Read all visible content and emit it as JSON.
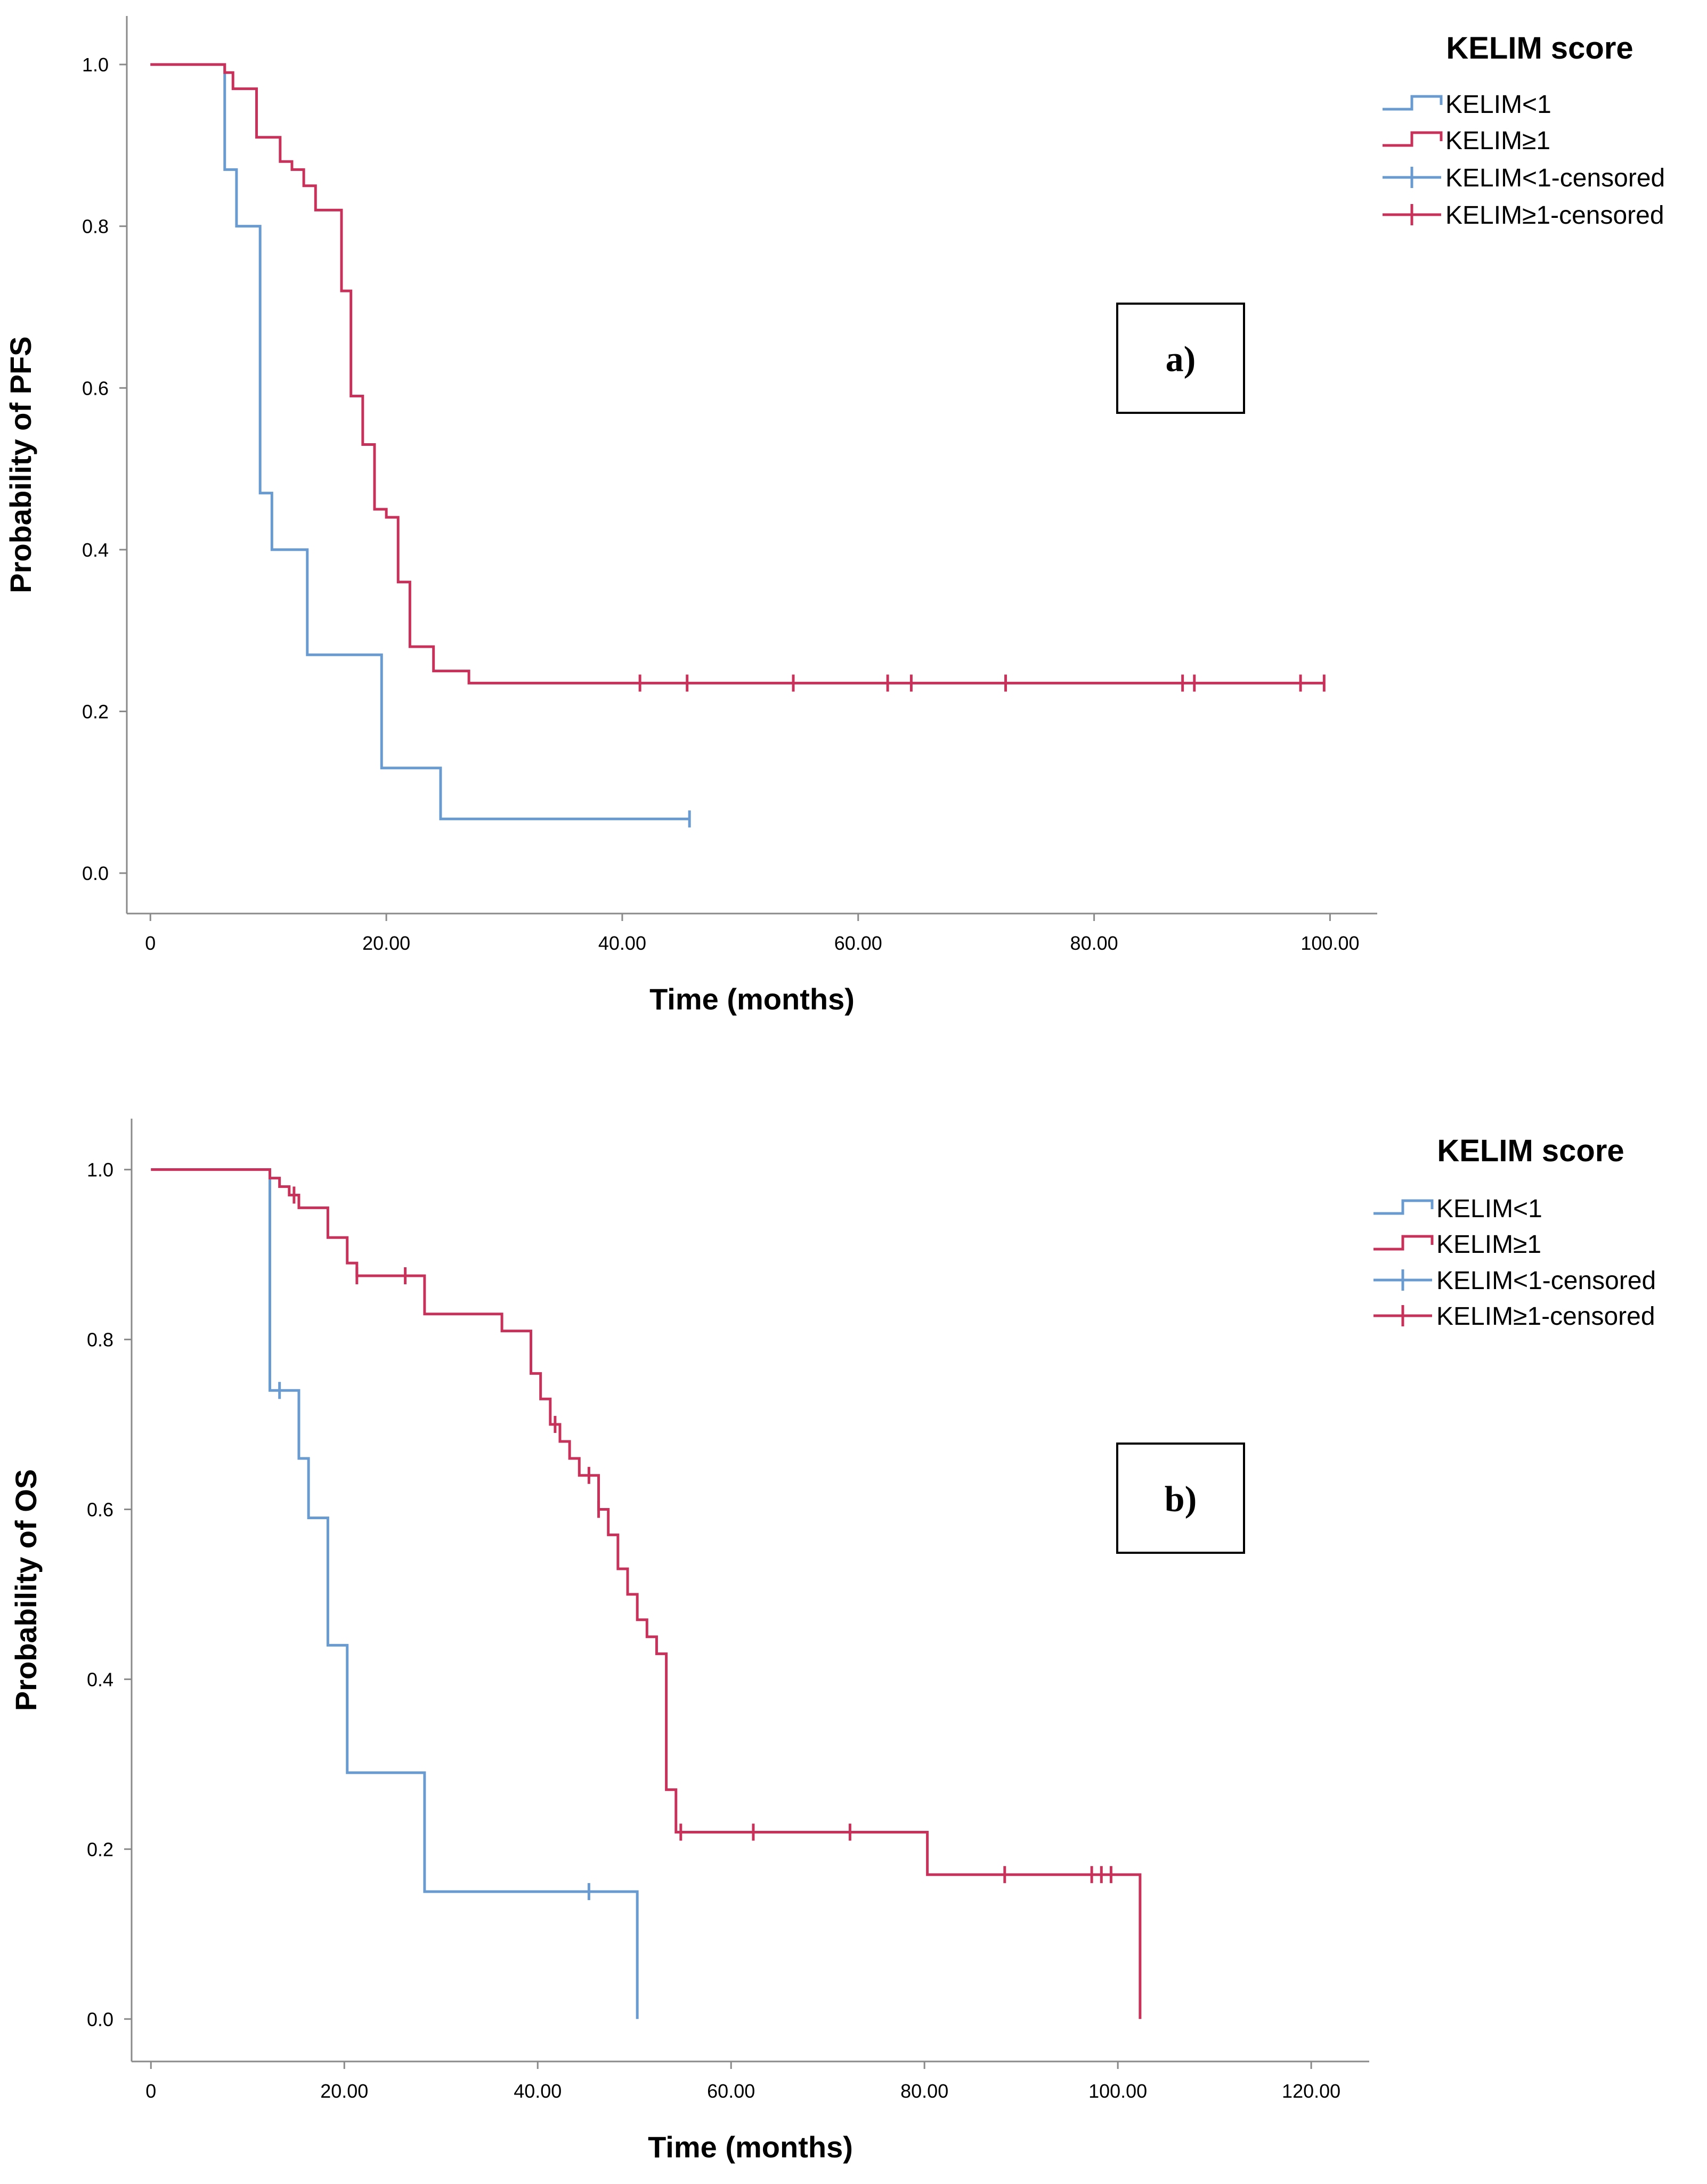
{
  "colors": {
    "low": "#6a9bd0",
    "high": "#c8325a"
  },
  "chart_data": [
    {
      "type": "line",
      "subtype": "kaplan-meier",
      "panel_label": "a)",
      "xlabel": "Time (months)",
      "ylabel": "Probability of PFS",
      "xlim": [
        -2,
        104
      ],
      "ylim": [
        -0.05,
        1.06
      ],
      "xticks": [
        {
          "value": 0,
          "label": "0"
        },
        {
          "value": 20,
          "label": "20.00"
        },
        {
          "value": 40,
          "label": "40.00"
        },
        {
          "value": 60,
          "label": "60.00"
        },
        {
          "value": 80,
          "label": "80.00"
        },
        {
          "value": 100,
          "label": "100.00"
        }
      ],
      "yticks": [
        {
          "value": 0,
          "label": "0.0"
        },
        {
          "value": 0.2,
          "label": "0.2"
        },
        {
          "value": 0.4,
          "label": "0.4"
        },
        {
          "value": 0.6,
          "label": "0.6"
        },
        {
          "value": 0.8,
          "label": "0.8"
        },
        {
          "value": 1.0,
          "label": "1.0"
        }
      ],
      "grid": false,
      "legend": {
        "title": "KELIM score",
        "placement": "top-right",
        "entries": [
          {
            "label": "KELIM<1",
            "kind": "step",
            "series": "low"
          },
          {
            "label": "KELIM≥1",
            "kind": "step",
            "series": "high"
          },
          {
            "label": "KELIM<1-censored",
            "kind": "censor",
            "series": "low"
          },
          {
            "label": "KELIM≥1-censored",
            "kind": "censor",
            "series": "high"
          }
        ]
      },
      "series": [
        {
          "key": "low",
          "name": "KELIM<1",
          "steps": [
            [
              0,
              1.0
            ],
            [
              6.3,
              0.87
            ],
            [
              7.3,
              0.8
            ],
            [
              9.3,
              0.47
            ],
            [
              10.3,
              0.4
            ],
            [
              13.3,
              0.27
            ],
            [
              19.6,
              0.13
            ],
            [
              24.6,
              0.067
            ]
          ],
          "end": 45.7,
          "censored": [
            45.7
          ]
        },
        {
          "key": "high",
          "name": "KELIM≥1",
          "steps": [
            [
              0,
              1.0
            ],
            [
              6.3,
              0.99
            ],
            [
              7.0,
              0.97
            ],
            [
              9.0,
              0.91
            ],
            [
              11.0,
              0.88
            ],
            [
              12.0,
              0.87
            ],
            [
              13.0,
              0.85
            ],
            [
              14.0,
              0.82
            ],
            [
              16.2,
              0.72
            ],
            [
              17.0,
              0.59
            ],
            [
              18.0,
              0.53
            ],
            [
              19.0,
              0.45
            ],
            [
              20.0,
              0.44
            ],
            [
              21.0,
              0.36
            ],
            [
              22.0,
              0.28
            ],
            [
              24.0,
              0.25
            ],
            [
              27.0,
              0.235
            ]
          ],
          "end": 99.6,
          "censored": [
            41.5,
            45.5,
            54.5,
            62.5,
            64.5,
            72.5,
            87.5,
            88.5,
            97.5,
            99.5
          ]
        }
      ]
    },
    {
      "type": "line",
      "subtype": "kaplan-meier",
      "panel_label": "b)",
      "xlabel": "Time (months)",
      "ylabel": "Probability of OS",
      "xlim": [
        -2,
        126
      ],
      "ylim": [
        -0.05,
        1.06
      ],
      "xticks": [
        {
          "value": 0,
          "label": "0"
        },
        {
          "value": 20,
          "label": "20.00"
        },
        {
          "value": 40,
          "label": "40.00"
        },
        {
          "value": 60,
          "label": "60.00"
        },
        {
          "value": 80,
          "label": "80.00"
        },
        {
          "value": 100,
          "label": "100.00"
        },
        {
          "value": 120,
          "label": "120.00"
        }
      ],
      "yticks": [
        {
          "value": 0,
          "label": "0.0"
        },
        {
          "value": 0.2,
          "label": "0.2"
        },
        {
          "value": 0.4,
          "label": "0.4"
        },
        {
          "value": 0.6,
          "label": "0.6"
        },
        {
          "value": 0.8,
          "label": "0.8"
        },
        {
          "value": 1.0,
          "label": "1.0"
        }
      ],
      "grid": false,
      "legend": {
        "title": "KELIM score",
        "placement": "top-right",
        "entries": [
          {
            "label": "KELIM<1",
            "kind": "step",
            "series": "low"
          },
          {
            "label": "KELIM≥1",
            "kind": "step",
            "series": "high"
          },
          {
            "label": "KELIM<1-censored",
            "kind": "censor",
            "series": "low"
          },
          {
            "label": "KELIM≥1-censored",
            "kind": "censor",
            "series": "high"
          }
        ]
      },
      "series": [
        {
          "key": "low",
          "name": "KELIM<1",
          "steps": [
            [
              0,
              1.0
            ],
            [
              12.3,
              0.74
            ],
            [
              15.3,
              0.66
            ],
            [
              16.3,
              0.59
            ],
            [
              18.3,
              0.44
            ],
            [
              20.3,
              0.29
            ],
            [
              28.3,
              0.15
            ],
            [
              50.3,
              0.0
            ]
          ],
          "end": 50.3,
          "censored": [
            13.3,
            45.3
          ]
        },
        {
          "key": "high",
          "name": "KELIM≥1",
          "steps": [
            [
              0,
              1.0
            ],
            [
              12.3,
              0.99
            ],
            [
              13.3,
              0.98
            ],
            [
              14.3,
              0.97
            ],
            [
              15.3,
              0.955
            ],
            [
              18.3,
              0.92
            ],
            [
              20.3,
              0.89
            ],
            [
              21.3,
              0.875
            ],
            [
              28.3,
              0.83
            ],
            [
              36.3,
              0.81
            ],
            [
              39.3,
              0.76
            ],
            [
              40.3,
              0.73
            ],
            [
              41.3,
              0.7
            ],
            [
              42.3,
              0.68
            ],
            [
              43.3,
              0.66
            ],
            [
              44.3,
              0.64
            ],
            [
              46.3,
              0.6
            ],
            [
              47.3,
              0.57
            ],
            [
              48.3,
              0.53
            ],
            [
              49.3,
              0.5
            ],
            [
              50.3,
              0.47
            ],
            [
              51.3,
              0.45
            ],
            [
              52.3,
              0.43
            ],
            [
              53.3,
              0.27
            ],
            [
              54.3,
              0.22
            ],
            [
              80.3,
              0.17
            ],
            [
              102.3,
              0.0
            ]
          ],
          "end": 102.3,
          "censored": [
            14.8,
            21.3,
            26.3,
            41.8,
            45.3,
            46.3,
            54.8,
            62.3,
            72.3,
            88.3,
            97.3,
            98.3,
            99.3
          ]
        }
      ]
    }
  ]
}
